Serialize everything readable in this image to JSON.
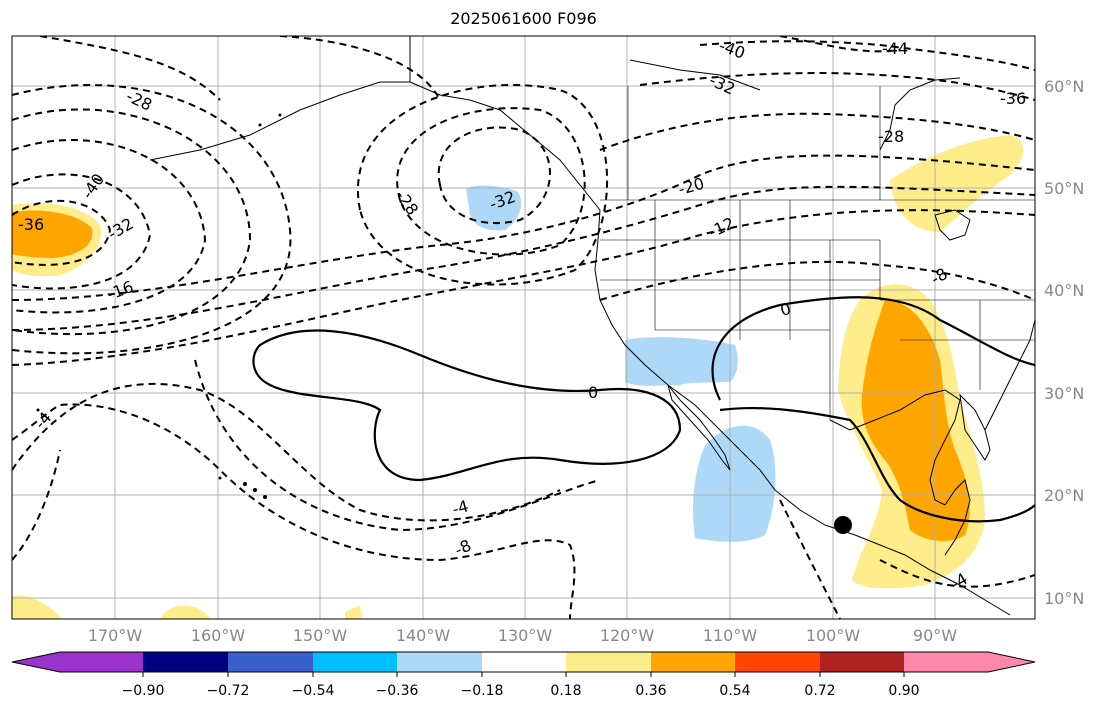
{
  "title": "2025061600 F096",
  "lat_labels": [
    "60°N",
    "50°N",
    "40°N",
    "30°N",
    "20°N",
    "10°N"
  ],
  "lon_labels": [
    "170°W",
    "160°W",
    "150°W",
    "140°W",
    "130°W",
    "120°W",
    "110°W",
    "100°W",
    "90°W"
  ],
  "contour_labels": [
    "-44",
    "-40",
    "-32",
    "-36",
    "-28",
    "-28",
    "-40",
    "-36",
    "-32",
    "-16",
    "-32",
    "-28",
    "-20",
    "-12",
    "0",
    "-8",
    "0",
    "-4",
    "-4",
    "-8",
    "-4"
  ],
  "colorbar": {
    "tick_labels": [
      "−0.90",
      "−0.72",
      "−0.54",
      "−0.36",
      "−0.18",
      "0.18",
      "0.36",
      "0.54",
      "0.72",
      "0.90"
    ],
    "colors": [
      "#9933cc",
      "#000080",
      "#3a5fcd",
      "#00bfff",
      "#add8f7",
      "#ffffff",
      "#ffec8b",
      "#ffa500",
      "#ff4500",
      "#b22222",
      "#ff88aa"
    ],
    "extend": "both"
  },
  "marker": "point-marker",
  "gridlines": true
}
